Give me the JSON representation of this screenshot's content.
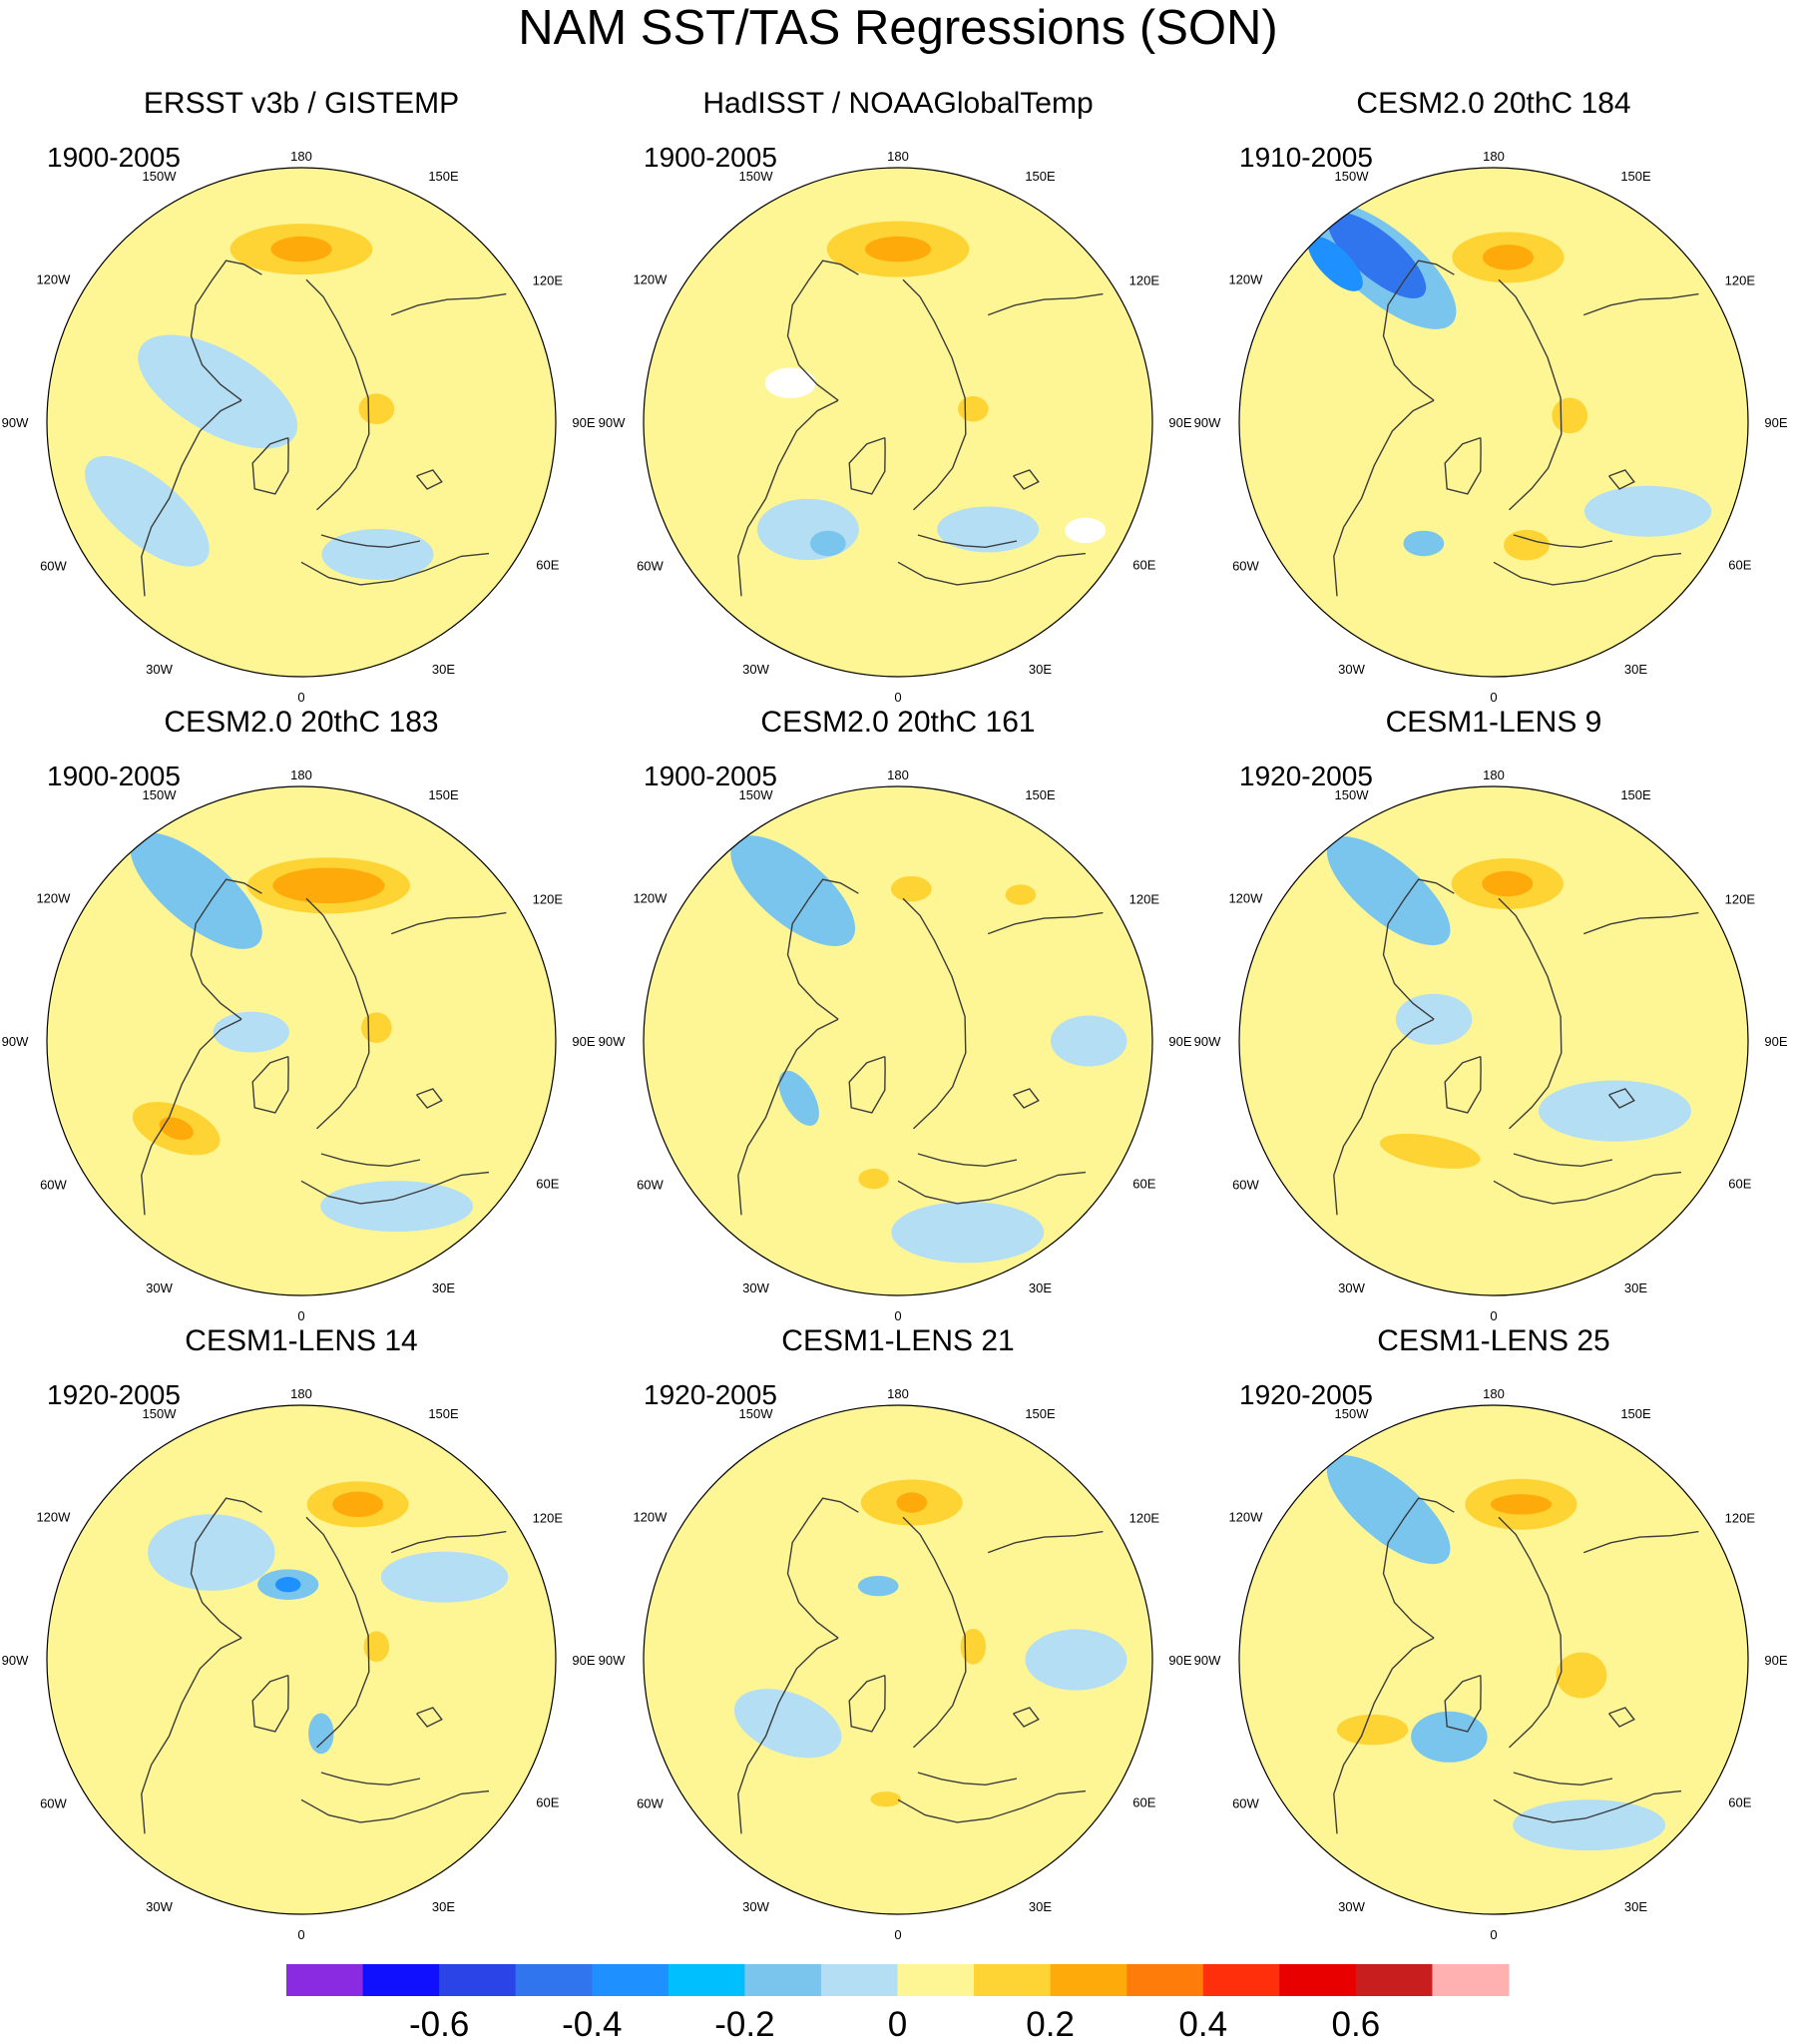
{
  "figure": {
    "title": "NAM SST/TAS Regressions (SON)"
  },
  "colors": {
    "coast": "#3c3c3c",
    "missing": "#ffffff",
    "outline": "#000000"
  },
  "chart_data": {
    "type": "polar-contour-map",
    "projection": "north-polar-stereographic",
    "variable": "NAM SST/TAS regression",
    "season": "SON",
    "longitude_labels": [
      "180",
      "150E",
      "120E",
      "90E",
      "60E",
      "30E",
      "0",
      "30W",
      "60W",
      "90W",
      "120W",
      "150W"
    ],
    "colorbar": {
      "colors": [
        "#8a2be2",
        "#1010ff",
        "#2a44e8",
        "#3175ee",
        "#1e90ff",
        "#00bfff",
        "#7ac5ee",
        "#b4def3",
        "#fef695",
        "#fed434",
        "#feaa0a",
        "#fe7d0a",
        "#fe2f0a",
        "#e80000",
        "#c81e1e",
        "#ffb0b0"
      ],
      "ticks": [
        -0.6,
        -0.4,
        -0.2,
        0,
        0.2,
        0.4,
        0.6
      ],
      "tick_labels": [
        "-0.6",
        "-0.4",
        "-0.2",
        "0",
        "0.2",
        "0.4",
        "0.6"
      ]
    },
    "panels": [
      {
        "title": "ERSST v3b / GISTEMP",
        "period": "1900-2005",
        "features": [
          {
            "lon": 180,
            "r": 0.68,
            "sx": 0.28,
            "sy": 0.1,
            "rot": 0,
            "color": "#fed434"
          },
          {
            "lon": 180,
            "r": 0.68,
            "sx": 0.12,
            "sy": 0.05,
            "rot": 0,
            "color": "#feaa0a"
          },
          {
            "lon": 250,
            "r": 0.35,
            "sx": 0.35,
            "sy": 0.16,
            "rot": 30,
            "color": "#b4def3"
          },
          {
            "lon": 100,
            "r": 0.3,
            "sx": 0.07,
            "sy": 0.06,
            "rot": 0,
            "color": "#fed434"
          },
          {
            "lon": 300,
            "r": 0.7,
            "sx": 0.3,
            "sy": 0.13,
            "rot": 40,
            "color": "#b4def3"
          },
          {
            "lon": 30,
            "r": 0.6,
            "sx": 0.22,
            "sy": 0.1,
            "rot": 0,
            "color": "#b4def3"
          }
        ]
      },
      {
        "title": "HadISST / NOAAGlobalTemp",
        "period": "1900-2005",
        "features": [
          {
            "lon": 180,
            "r": 0.68,
            "sx": 0.28,
            "sy": 0.11,
            "rot": 0,
            "color": "#fed434"
          },
          {
            "lon": 180,
            "r": 0.68,
            "sx": 0.13,
            "sy": 0.05,
            "rot": 0,
            "color": "#feaa0a"
          },
          {
            "lon": 320,
            "r": 0.55,
            "sx": 0.2,
            "sy": 0.12,
            "rot": 0,
            "color": "#b4def3"
          },
          {
            "lon": 330,
            "r": 0.55,
            "sx": 0.07,
            "sy": 0.05,
            "rot": 0,
            "color": "#7ac5ee"
          },
          {
            "lon": 100,
            "r": 0.3,
            "sx": 0.06,
            "sy": 0.05,
            "rot": 0,
            "color": "#fed434"
          },
          {
            "lon": 40,
            "r": 0.55,
            "sx": 0.2,
            "sy": 0.09,
            "rot": 0,
            "color": "#b4def3"
          },
          {
            "lon": 250,
            "r": 0.45,
            "sx": 0.1,
            "sy": 0.06,
            "rot": 0,
            "color": "#ffffff"
          },
          {
            "lon": 60,
            "r": 0.85,
            "sx": 0.08,
            "sy": 0.05,
            "rot": 0,
            "color": "#ffffff"
          }
        ]
      },
      {
        "title": "CESM2.0 20thC 184",
        "period": "1910-2005",
        "features": [
          {
            "lon": 215,
            "r": 0.75,
            "sx": 0.35,
            "sy": 0.14,
            "rot": 40,
            "color": "#7ac5ee"
          },
          {
            "lon": 215,
            "r": 0.8,
            "sx": 0.24,
            "sy": 0.09,
            "rot": 40,
            "color": "#3175ee"
          },
          {
            "lon": 225,
            "r": 0.88,
            "sx": 0.14,
            "sy": 0.06,
            "rot": 45,
            "color": "#1e90ff"
          },
          {
            "lon": 175,
            "r": 0.65,
            "sx": 0.22,
            "sy": 0.1,
            "rot": 0,
            "color": "#fed434"
          },
          {
            "lon": 175,
            "r": 0.65,
            "sx": 0.1,
            "sy": 0.05,
            "rot": 0,
            "color": "#feaa0a"
          },
          {
            "lon": 330,
            "r": 0.55,
            "sx": 0.08,
            "sy": 0.05,
            "rot": 0,
            "color": "#7ac5ee"
          },
          {
            "lon": 15,
            "r": 0.5,
            "sx": 0.09,
            "sy": 0.06,
            "rot": 0,
            "color": "#fed434"
          },
          {
            "lon": 95,
            "r": 0.3,
            "sx": 0.07,
            "sy": 0.07,
            "rot": 0,
            "color": "#fed434"
          },
          {
            "lon": 60,
            "r": 0.7,
            "sx": 0.25,
            "sy": 0.1,
            "rot": 0,
            "color": "#b4def3"
          }
        ]
      },
      {
        "title": "CESM2.0 20thC 183",
        "period": "1900-2005",
        "features": [
          {
            "lon": 215,
            "r": 0.72,
            "sx": 0.32,
            "sy": 0.13,
            "rot": 40,
            "color": "#7ac5ee"
          },
          {
            "lon": 170,
            "r": 0.62,
            "sx": 0.32,
            "sy": 0.11,
            "rot": 0,
            "color": "#fed434"
          },
          {
            "lon": 170,
            "r": 0.62,
            "sx": 0.22,
            "sy": 0.07,
            "rot": 0,
            "color": "#feaa0a"
          },
          {
            "lon": 305,
            "r": 0.6,
            "sx": 0.18,
            "sy": 0.09,
            "rot": 20,
            "color": "#fed434"
          },
          {
            "lon": 305,
            "r": 0.6,
            "sx": 0.07,
            "sy": 0.04,
            "rot": 20,
            "color": "#feaa0a"
          },
          {
            "lon": 100,
            "r": 0.3,
            "sx": 0.06,
            "sy": 0.06,
            "rot": 0,
            "color": "#fed434"
          },
          {
            "lon": 30,
            "r": 0.75,
            "sx": 0.3,
            "sy": 0.1,
            "rot": 0,
            "color": "#b4def3"
          },
          {
            "lon": 260,
            "r": 0.2,
            "sx": 0.15,
            "sy": 0.08,
            "rot": 0,
            "color": "#b4def3"
          }
        ]
      },
      {
        "title": "CESM2.0 20thC 161",
        "period": "1900-2005",
        "features": [
          {
            "lon": 215,
            "r": 0.72,
            "sx": 0.3,
            "sy": 0.13,
            "rot": 40,
            "color": "#7ac5ee"
          },
          {
            "lon": 175,
            "r": 0.6,
            "sx": 0.08,
            "sy": 0.05,
            "rot": 0,
            "color": "#fed434"
          },
          {
            "lon": 140,
            "r": 0.75,
            "sx": 0.06,
            "sy": 0.04,
            "rot": 0,
            "color": "#fed434"
          },
          {
            "lon": 300,
            "r": 0.45,
            "sx": 0.12,
            "sy": 0.06,
            "rot": 60,
            "color": "#7ac5ee"
          },
          {
            "lon": 350,
            "r": 0.55,
            "sx": 0.06,
            "sy": 0.04,
            "rot": 0,
            "color": "#fed434"
          },
          {
            "lon": 20,
            "r": 0.8,
            "sx": 0.3,
            "sy": 0.12,
            "rot": 0,
            "color": "#b4def3"
          },
          {
            "lon": 90,
            "r": 0.75,
            "sx": 0.15,
            "sy": 0.1,
            "rot": 0,
            "color": "#b4def3"
          }
        ]
      },
      {
        "title": "CESM1-LENS 9",
        "period": "1920-2005",
        "features": [
          {
            "lon": 215,
            "r": 0.72,
            "sx": 0.3,
            "sy": 0.12,
            "rot": 40,
            "color": "#7ac5ee"
          },
          {
            "lon": 175,
            "r": 0.62,
            "sx": 0.22,
            "sy": 0.1,
            "rot": 0,
            "color": "#fed434"
          },
          {
            "lon": 175,
            "r": 0.62,
            "sx": 0.1,
            "sy": 0.05,
            "rot": 0,
            "color": "#feaa0a"
          },
          {
            "lon": 330,
            "r": 0.5,
            "sx": 0.2,
            "sy": 0.06,
            "rot": 10,
            "color": "#fed434"
          },
          {
            "lon": 60,
            "r": 0.55,
            "sx": 0.3,
            "sy": 0.12,
            "rot": 0,
            "color": "#b4def3"
          },
          {
            "lon": 250,
            "r": 0.25,
            "sx": 0.15,
            "sy": 0.1,
            "rot": 0,
            "color": "#b4def3"
          }
        ]
      },
      {
        "title": "CESM1-LENS 14",
        "period": "1920-2005",
        "features": [
          {
            "lon": 220,
            "r": 0.55,
            "sx": 0.25,
            "sy": 0.15,
            "rot": 0,
            "color": "#b4def3"
          },
          {
            "lon": 190,
            "r": 0.3,
            "sx": 0.12,
            "sy": 0.06,
            "rot": 0,
            "color": "#7ac5ee"
          },
          {
            "lon": 190,
            "r": 0.3,
            "sx": 0.05,
            "sy": 0.03,
            "rot": 0,
            "color": "#1e90ff"
          },
          {
            "lon": 160,
            "r": 0.65,
            "sx": 0.2,
            "sy": 0.09,
            "rot": 0,
            "color": "#fed434"
          },
          {
            "lon": 160,
            "r": 0.65,
            "sx": 0.1,
            "sy": 0.05,
            "rot": 0,
            "color": "#feaa0a"
          },
          {
            "lon": 15,
            "r": 0.3,
            "sx": 0.05,
            "sy": 0.08,
            "rot": 0,
            "color": "#7ac5ee"
          },
          {
            "lon": 100,
            "r": 0.3,
            "sx": 0.05,
            "sy": 0.06,
            "rot": 0,
            "color": "#fed434"
          },
          {
            "lon": 120,
            "r": 0.65,
            "sx": 0.25,
            "sy": 0.1,
            "rot": 0,
            "color": "#b4def3"
          }
        ]
      },
      {
        "title": "CESM1-LENS 21",
        "period": "1920-2005",
        "features": [
          {
            "lon": 175,
            "r": 0.62,
            "sx": 0.2,
            "sy": 0.09,
            "rot": 0,
            "color": "#fed434"
          },
          {
            "lon": 175,
            "r": 0.62,
            "sx": 0.06,
            "sy": 0.04,
            "rot": 0,
            "color": "#feaa0a"
          },
          {
            "lon": 195,
            "r": 0.3,
            "sx": 0.08,
            "sy": 0.04,
            "rot": 0,
            "color": "#7ac5ee"
          },
          {
            "lon": 100,
            "r": 0.3,
            "sx": 0.05,
            "sy": 0.07,
            "rot": 0,
            "color": "#fed434"
          },
          {
            "lon": 300,
            "r": 0.5,
            "sx": 0.22,
            "sy": 0.12,
            "rot": 20,
            "color": "#b4def3"
          },
          {
            "lon": 355,
            "r": 0.55,
            "sx": 0.06,
            "sy": 0.03,
            "rot": 0,
            "color": "#fed434"
          },
          {
            "lon": 90,
            "r": 0.7,
            "sx": 0.2,
            "sy": 0.12,
            "rot": 0,
            "color": "#b4def3"
          }
        ]
      },
      {
        "title": "CESM1-LENS 25",
        "period": "1920-2005",
        "features": [
          {
            "lon": 215,
            "r": 0.72,
            "sx": 0.3,
            "sy": 0.12,
            "rot": 40,
            "color": "#7ac5ee"
          },
          {
            "lon": 170,
            "r": 0.62,
            "sx": 0.22,
            "sy": 0.1,
            "rot": 0,
            "color": "#fed434"
          },
          {
            "lon": 170,
            "r": 0.62,
            "sx": 0.12,
            "sy": 0.04,
            "rot": 0,
            "color": "#feaa0a"
          },
          {
            "lon": 330,
            "r": 0.35,
            "sx": 0.15,
            "sy": 0.1,
            "rot": 0,
            "color": "#7ac5ee"
          },
          {
            "lon": 80,
            "r": 0.35,
            "sx": 0.1,
            "sy": 0.09,
            "rot": 0,
            "color": "#fed434"
          },
          {
            "lon": 300,
            "r": 0.55,
            "sx": 0.14,
            "sy": 0.06,
            "rot": 0,
            "color": "#fed434"
          },
          {
            "lon": 30,
            "r": 0.75,
            "sx": 0.3,
            "sy": 0.1,
            "rot": 0,
            "color": "#b4def3"
          }
        ]
      }
    ]
  }
}
